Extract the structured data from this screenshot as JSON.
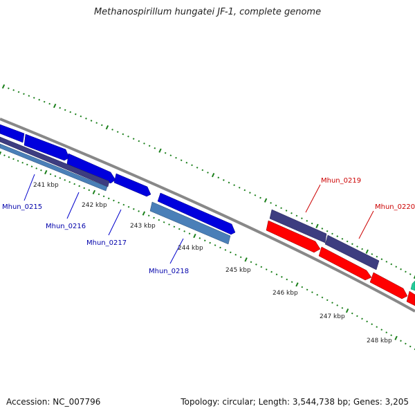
{
  "title": "Methanospirillum hungatei JF-1, complete genome",
  "footer": {
    "accession": "Accession: NC_007796",
    "topology": "Topology: circular; Length: 3,544,738 bp; Genes: 3,205"
  },
  "colors": {
    "backbone": "#888888",
    "forward_gene_dark": "#0000dd",
    "forward_gene_light": "#4a7fb8",
    "reverse_gene": "#ff0000",
    "reverse_gene_navy": "#3d3d80",
    "tick": "#1a7f1a",
    "blue_label": "#0000aa",
    "red_label": "#cc0000"
  },
  "scale_labels": [
    "241 kbp",
    "242 kbp",
    "243 kbp",
    "244 kbp",
    "245 kbp",
    "246 kbp",
    "247 kbp",
    "248 kbp"
  ],
  "gene_labels": [
    {
      "id": "Mhun_0215",
      "color": "blue"
    },
    {
      "id": "Mhun_0216",
      "color": "blue"
    },
    {
      "id": "Mhun_0217",
      "color": "blue"
    },
    {
      "id": "Mhun_0218",
      "color": "blue"
    },
    {
      "id": "Mhun_0219",
      "color": "red"
    },
    {
      "id": "Mhun_0220",
      "color": "red"
    }
  ]
}
